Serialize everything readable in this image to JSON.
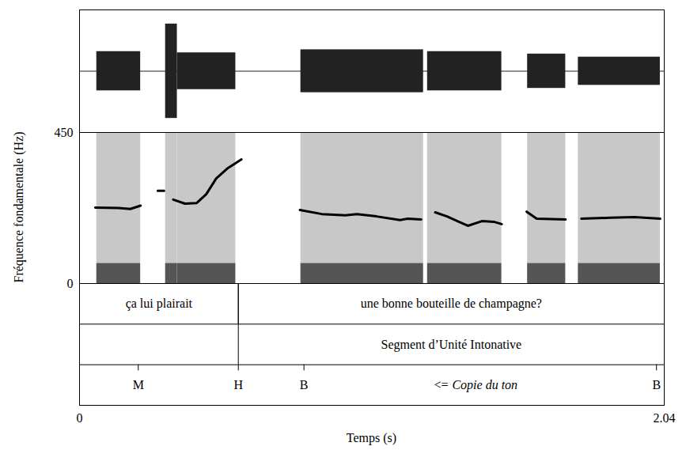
{
  "chart_data": {
    "type": "line",
    "y_label": "Fréquence fondamentale (Hz)",
    "x_label": "Temps (s)",
    "color": "#000000",
    "x": [
      0.055,
      0.136,
      0.177,
      0.213,
      0.24,
      0.273,
      0.295,
      0.31,
      0.327,
      0.368,
      0.409,
      0.442,
      0.477,
      0.518,
      0.565,
      0.67,
      0.769,
      0.845,
      0.927,
      0.968,
      1.036,
      1.118,
      1.145,
      1.192,
      1.215,
      1.241,
      1.282,
      1.323,
      1.355,
      1.404,
      1.445,
      1.473,
      1.52,
      1.56,
      1.595,
      1.696,
      1.72,
      1.751,
      1.854,
      1.936,
      2.026
    ],
    "values": [
      226,
      225,
      222,
      232,
      null,
      276,
      276,
      null,
      250,
      238,
      240,
      266,
      313,
      344,
      370,
      null,
      219,
      207,
      203,
      207,
      200,
      189,
      193,
      191,
      null,
      212,
      200,
      184,
      172,
      186,
      184,
      177,
      null,
      214,
      193,
      191,
      null,
      193,
      196,
      198,
      193
    ],
    "xlim": [
      0,
      2.04
    ],
    "xticks": [
      0,
      2.04
    ],
    "ylim": [
      0,
      450
    ],
    "yticks": [
      0,
      450
    ],
    "waveform": {
      "ylim": [
        -1,
        1
      ],
      "color": "#222222",
      "segments": [
        {
          "start": 0.06,
          "end": 0.213,
          "amplitude": 0.32
        },
        {
          "start": 0.3,
          "end": 0.341,
          "amplitude": 0.77
        },
        {
          "start": 0.341,
          "end": 0.545,
          "amplitude": 0.3
        },
        {
          "start": 0.772,
          "end": 1.2,
          "amplitude": 0.35
        },
        {
          "start": 1.214,
          "end": 1.473,
          "amplitude": 0.32
        },
        {
          "start": 1.563,
          "end": 1.696,
          "amplitude": 0.28
        },
        {
          "start": 1.74,
          "end": 2.026,
          "amplitude": 0.23
        }
      ]
    },
    "spectrogram": {
      "bands": [
        {
          "low": 60,
          "high": 450,
          "color": "#c8c8c8"
        },
        {
          "low": 0,
          "high": 60,
          "color": "#555555"
        }
      ]
    },
    "tiers": [
      {
        "intervals": [
          {
            "start": 0,
            "end": 0.554,
            "text": "ça lui plairait"
          },
          {
            "start": 0.554,
            "end": 2.04,
            "text": "une bonne bouteille de champagne?"
          }
        ]
      },
      {
        "intervals": [
          {
            "start": 0.554,
            "end": 2.04,
            "text": "Segment d’Unité Intonative"
          }
        ]
      },
      {
        "points": [
          {
            "time": 0.205,
            "label": "M"
          },
          {
            "time": 0.554,
            "label": "H"
          },
          {
            "time": 0.783,
            "label": "B"
          },
          {
            "time": 2.013,
            "label": "B"
          }
        ],
        "note": {
          "time": 1.3,
          "prefix": "<=",
          "text": "Copie du ton"
        }
      }
    ]
  }
}
